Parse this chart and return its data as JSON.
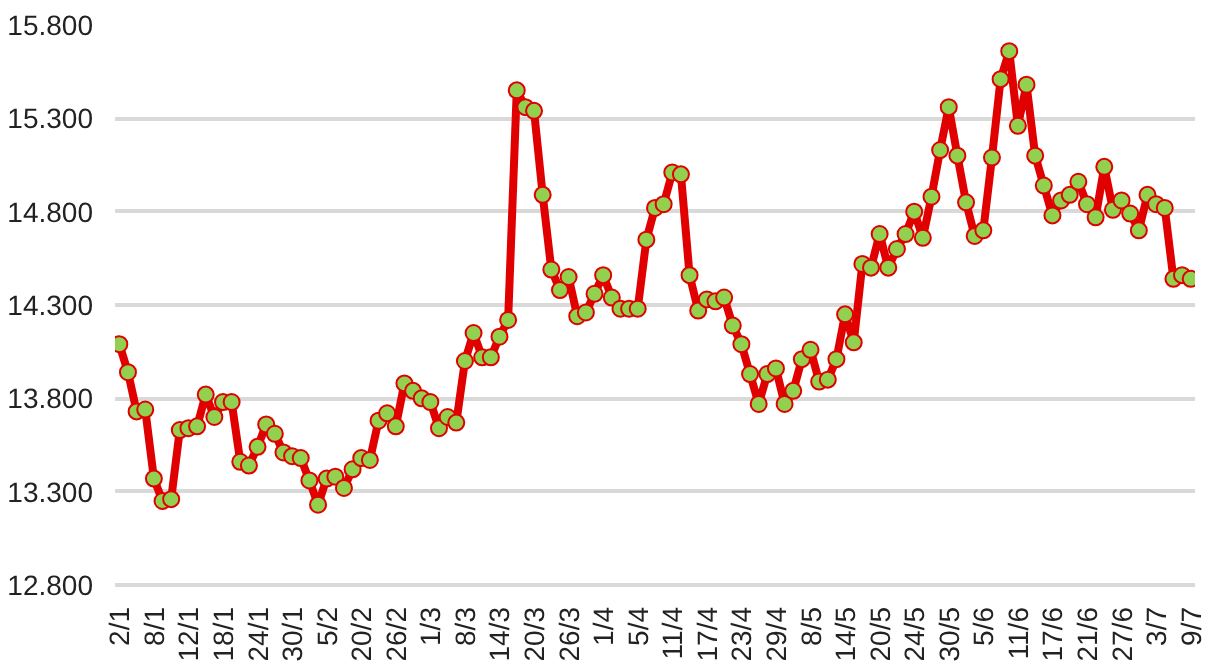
{
  "chart_data": {
    "type": "line",
    "categories": [
      "2/1",
      null,
      null,
      null,
      "8/1",
      null,
      null,
      null,
      "12/1",
      null,
      null,
      null,
      "18/1",
      null,
      null,
      null,
      "24/1",
      null,
      null,
      null,
      "30/1",
      null,
      null,
      null,
      "5/2",
      null,
      null,
      null,
      "20/2",
      null,
      null,
      null,
      "26/2",
      null,
      null,
      null,
      "1/3",
      null,
      null,
      null,
      "8/3",
      null,
      null,
      null,
      "14/3",
      null,
      null,
      null,
      "20/3",
      null,
      null,
      null,
      "26/3",
      null,
      null,
      null,
      "1/4",
      null,
      null,
      null,
      "5/4",
      null,
      null,
      null,
      "11/4",
      null,
      null,
      null,
      "17/4",
      null,
      null,
      null,
      "23/4",
      null,
      null,
      null,
      "29/4",
      null,
      null,
      null,
      "8/5",
      null,
      null,
      null,
      "14/5",
      null,
      null,
      null,
      "20/5",
      null,
      null,
      null,
      "24/5",
      null,
      null,
      null,
      "30/5",
      null,
      null,
      null,
      "5/6",
      null,
      null,
      null,
      "11/6",
      null,
      null,
      null,
      "17/6",
      null,
      null,
      null,
      "21/6",
      null,
      null,
      null,
      "27/6",
      null,
      null,
      null,
      "3/7",
      null,
      null,
      null,
      "9/7"
    ],
    "series": [
      {
        "color": "#e00000",
        "values": [
          14.09,
          13.94,
          13.73,
          13.74,
          13.37,
          13.25,
          13.26,
          13.63,
          13.64,
          13.65,
          13.82,
          13.7,
          13.78,
          13.78,
          13.46,
          13.44,
          13.54,
          13.66,
          13.61,
          13.51,
          13.49,
          13.48,
          13.36,
          13.23,
          13.37,
          13.38,
          13.32,
          13.42,
          13.48,
          13.47,
          13.68,
          13.72,
          13.65,
          13.88,
          13.84,
          13.8,
          13.78,
          13.64,
          13.7,
          13.67,
          14.0,
          14.15,
          14.02,
          14.02,
          14.13,
          14.22,
          15.45,
          15.36,
          15.34,
          14.89,
          14.49,
          14.38,
          14.45,
          14.24,
          14.26,
          14.36,
          14.46,
          14.34,
          14.28,
          14.28,
          14.28,
          14.65,
          14.82,
          14.84,
          15.01,
          15.0,
          14.46,
          14.27,
          14.33,
          14.32,
          14.34,
          14.19,
          14.09,
          13.93,
          13.77,
          13.93,
          13.96,
          13.77,
          13.84,
          14.01,
          14.06,
          13.89,
          13.9,
          14.01,
          14.25,
          14.1,
          14.52,
          14.5,
          14.68,
          14.5,
          14.6,
          14.68,
          14.8,
          14.66,
          14.88,
          15.13,
          15.36,
          15.1,
          14.85,
          14.67,
          14.7,
          15.09,
          15.51,
          15.66,
          15.26,
          15.48,
          15.1,
          14.94,
          14.78,
          14.86,
          14.89,
          14.96,
          14.84,
          14.77,
          15.04,
          14.81,
          14.86,
          14.79,
          14.7,
          14.89,
          14.84,
          14.82,
          14.44,
          14.46,
          14.44
        ]
      }
    ],
    "marker": "circle",
    "grid": "y",
    "ylim": [
      12.8,
      15.8
    ],
    "yticks": [
      {
        "value": 12.8,
        "label": "12.800"
      },
      {
        "value": 13.3,
        "label": "13.300"
      },
      {
        "value": 13.8,
        "label": "13.800"
      },
      {
        "value": 14.3,
        "label": "14.300"
      },
      {
        "value": 14.8,
        "label": "14.800"
      },
      {
        "value": 15.3,
        "label": "15.300"
      },
      {
        "value": 15.8,
        "label": "15.800"
      }
    ]
  }
}
